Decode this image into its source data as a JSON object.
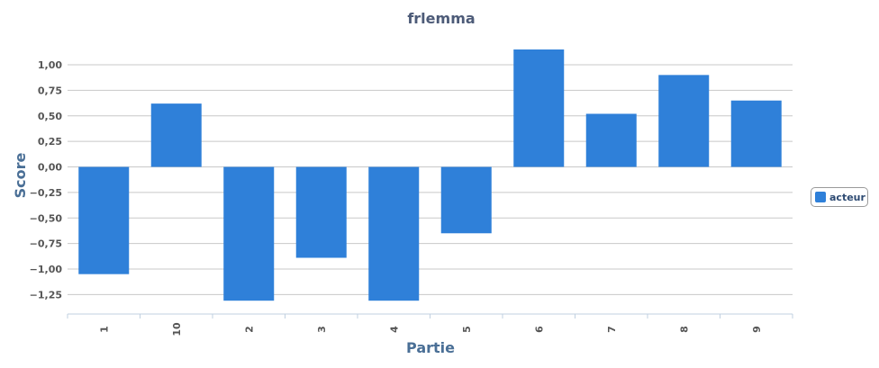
{
  "chart_data": {
    "type": "bar",
    "title": "frlemma",
    "xlabel": "Partie",
    "ylabel": "Score",
    "categories": [
      "1",
      "10",
      "2",
      "3",
      "4",
      "5",
      "6",
      "7",
      "8",
      "9"
    ],
    "series": [
      {
        "name": "acteur",
        "color": "#2f80d9",
        "values": [
          -1.05,
          0.62,
          -1.31,
          -0.89,
          -1.31,
          -0.65,
          1.15,
          0.52,
          0.9,
          0.65
        ]
      }
    ],
    "ylim": [
      -1.45,
      1.25
    ],
    "yticks": [
      1.0,
      0.75,
      0.5,
      0.25,
      0.0,
      -0.25,
      -0.5,
      -0.75,
      -1.0,
      -1.25
    ],
    "ytick_labels": [
      "1,00",
      "0,75",
      "0,50",
      "0,25",
      "0,00",
      "−0,25",
      "−0,50",
      "−0,75",
      "−1,00",
      "−1,25"
    ],
    "grid": true,
    "legend_position": "right"
  }
}
